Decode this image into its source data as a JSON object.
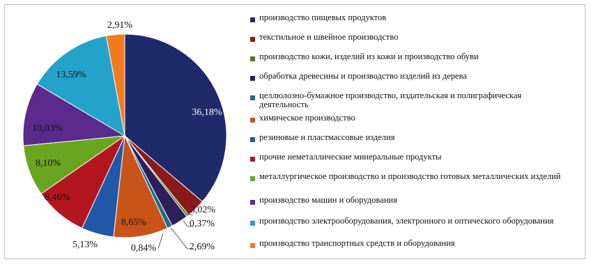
{
  "chart_data": {
    "type": "pie",
    "categories": [
      "производство пищевых продуктов",
      "текстильное и швейное производство",
      "производство кожи, изделий из кожи и производство обуви",
      "обработка древесины и производство изделий из дерева",
      "целлюлозно-бумажное производство, издательская и полиграфическая деятельность",
      "химическое производство",
      "резиновые и пластмассовые изделия",
      "прочие неметаллические минеральные продукты",
      "металлургическое производство и производство готовых металлических изделий",
      "производство машин и оборудования",
      "производство электрооборудования, электронного и оптического оборудования",
      "производство транспортных средств и оборудования"
    ],
    "values": [
      36.18,
      3.02,
      0.37,
      2.69,
      0.84,
      8.65,
      5.13,
      8.46,
      8.1,
      10.03,
      13.59,
      2.91
    ],
    "data_labels": [
      "36,18%",
      "3,02%",
      "0,37%",
      "2,69%",
      "0,84%",
      "8,65%",
      "5,13%",
      "8,46%",
      "8,10%",
      "10,03%",
      "13,59%",
      "2,91%"
    ],
    "colors": [
      "#1f2a6b",
      "#8b1a1a",
      "#4b7a1d",
      "#2c1f5c",
      "#1d6e86",
      "#c9541a",
      "#2158a8",
      "#b3161e",
      "#6aa51f",
      "#5b2a8c",
      "#23a3c9",
      "#f47a20"
    ],
    "legend_position": "right",
    "start_angle": "top, clockwise"
  }
}
